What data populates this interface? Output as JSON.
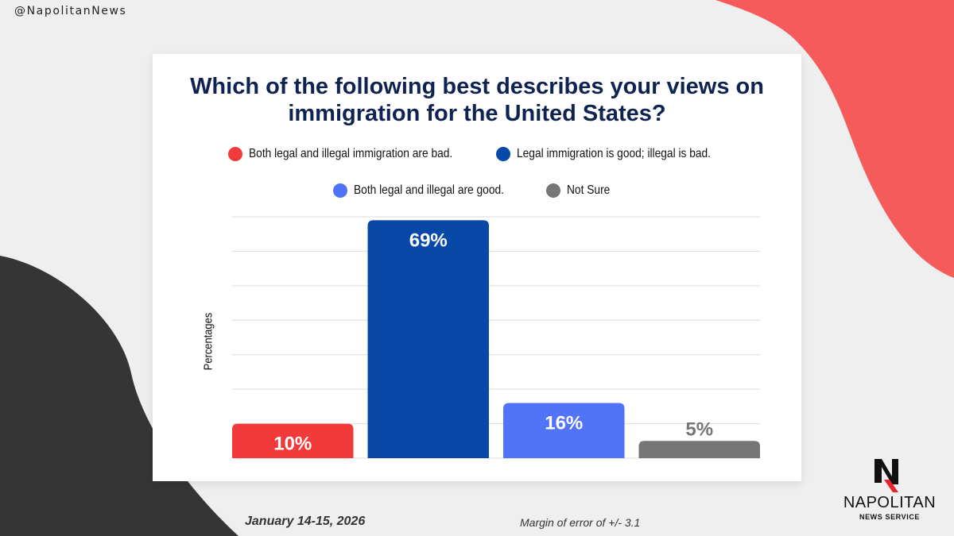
{
  "handle": "@NapolitanNews",
  "title_lines": [
    "Which of the following best describes your views on",
    "immigration for the United States?"
  ],
  "colors": {
    "bad_both": "#f23a3a",
    "legal_good": "#0848a8",
    "good_both": "#5173f7",
    "not_sure": "#767676",
    "accent_blob": "#f65b5b",
    "dark_blob": "#353535",
    "title": "#0f2352"
  },
  "chart_data": {
    "type": "bar",
    "title": "Which of the following best describes your views on immigration for the United States?",
    "ylabel": "Percentages",
    "ylim": [
      0,
      70
    ],
    "grid": true,
    "legend_position": "top",
    "categories": [
      "Both legal and illegal immigration are bad.",
      "Legal immigration is good; illegal is bad.",
      "Both legal and illegal are good.",
      "Not Sure"
    ],
    "values": [
      10,
      69,
      16,
      5
    ],
    "data_labels": [
      "10%",
      "69%",
      "16%",
      "5%"
    ],
    "label_placement": [
      "inside",
      "inside",
      "inside",
      "outside"
    ]
  },
  "footer": {
    "date": "January 14-15, 2026",
    "margin": "Margin of error of +/- 3.1"
  },
  "logo": {
    "name": "NAPOLITAN",
    "sub": "NEWS SERVICE"
  }
}
